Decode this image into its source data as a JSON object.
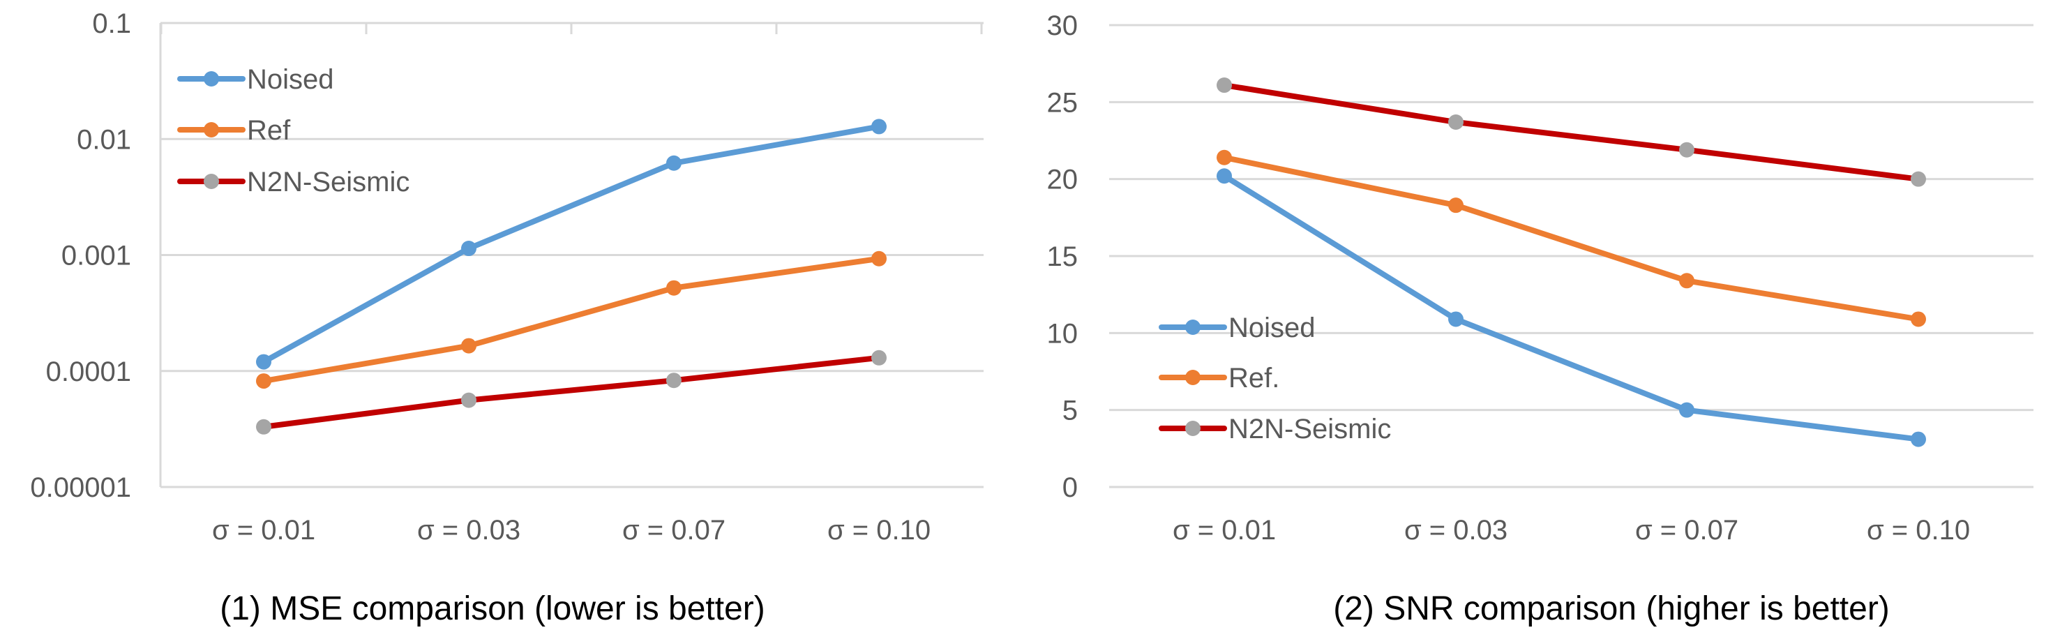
{
  "chart_data": [
    {
      "type": "line",
      "title": "",
      "caption": "(1) MSE comparison (lower is better)",
      "xlabel": "",
      "ylabel": "",
      "yscale": "log",
      "ylim": [
        1e-05,
        0.1
      ],
      "yticks": [
        "0.00001",
        "0.0001",
        "0.001",
        "0.01",
        "0.1"
      ],
      "categories": [
        "σ = 0.01",
        "σ = 0.03",
        "σ = 0.07",
        "σ = 0.10"
      ],
      "grid": true,
      "legend_position": "top-left",
      "series": [
        {
          "name": "Noised",
          "color": "#5b9bd5",
          "marker_color": "#5b9bd5",
          "values": [
            0.00012,
            0.00114,
            0.0062,
            0.0128
          ]
        },
        {
          "name": "Ref",
          "color": "#ed7d31",
          "marker_color": "#ed7d31",
          "values": [
            8.2e-05,
            0.000165,
            0.00052,
            0.00093
          ]
        },
        {
          "name": "N2N-Seismic",
          "color": "#c00000",
          "marker_color": "#a5a5a5",
          "values": [
            3.3e-05,
            5.6e-05,
            8.3e-05,
            0.00013
          ]
        }
      ]
    },
    {
      "type": "line",
      "title": "",
      "caption": "(2) SNR comparison (higher is better)",
      "xlabel": "",
      "ylabel": "",
      "yscale": "linear",
      "ylim": [
        0,
        30
      ],
      "yticks": [
        "0",
        "5",
        "10",
        "15",
        "20",
        "25",
        "30"
      ],
      "categories": [
        "σ = 0.01",
        "σ = 0.03",
        "σ = 0.07",
        "σ = 0.10"
      ],
      "grid": true,
      "legend_position": "center-left",
      "series": [
        {
          "name": "Noised",
          "color": "#5b9bd5",
          "marker_color": "#5b9bd5",
          "values": [
            20.2,
            10.9,
            5.0,
            3.1
          ]
        },
        {
          "name": "Ref.",
          "color": "#ed7d31",
          "marker_color": "#ed7d31",
          "values": [
            21.4,
            18.3,
            13.4,
            10.9
          ]
        },
        {
          "name": "N2N-Seismic",
          "color": "#c00000",
          "marker_color": "#a5a5a5",
          "values": [
            26.1,
            23.7,
            21.9,
            20.0
          ]
        }
      ]
    }
  ]
}
